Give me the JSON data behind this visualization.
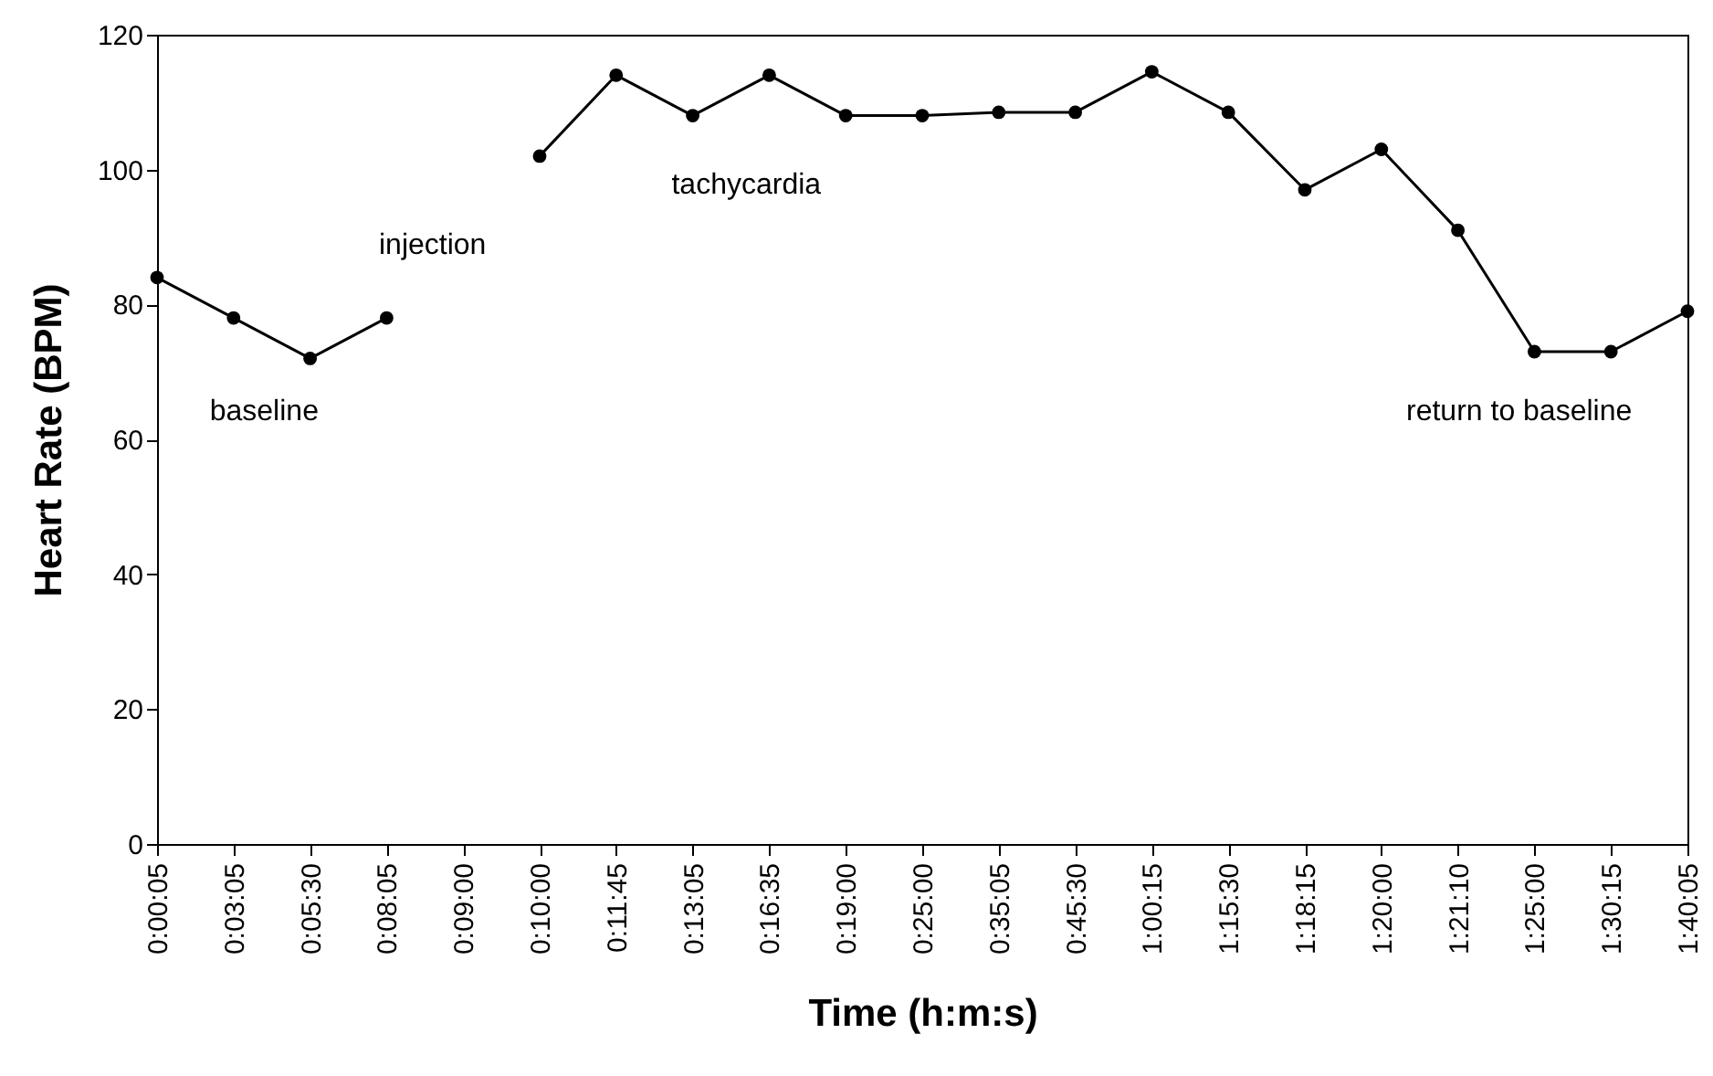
{
  "chart_data": {
    "type": "line",
    "xlabel": "Time (h:m:s)",
    "ylabel": "Heart Rate (BPM)",
    "categories": [
      "0:00:05",
      "0:03:05",
      "0:05:30",
      "0:08:05",
      "0:09:00",
      "0:10:00",
      "0:11:45",
      "0:13:05",
      "0:16:35",
      "0:19:00",
      "0:25:00",
      "0:35:05",
      "0:45:30",
      "1:00:15",
      "1:15:30",
      "1:18:15",
      "1:20:00",
      "1:21:10",
      "1:25:00",
      "1:30:15",
      "1:40:05"
    ],
    "values": [
      84,
      78,
      72,
      78,
      null,
      102,
      114,
      108,
      114,
      108,
      108,
      108.5,
      108.5,
      114.5,
      108.5,
      97,
      103,
      91,
      73,
      73,
      79
    ],
    "color": "#000000",
    "marker": "circle",
    "ylim": [
      0,
      120
    ],
    "yticks": [
      0,
      20,
      40,
      60,
      80,
      100,
      120
    ],
    "annotations": [
      "baseline",
      "injection",
      "tachycardia",
      "return to baseline"
    ]
  }
}
